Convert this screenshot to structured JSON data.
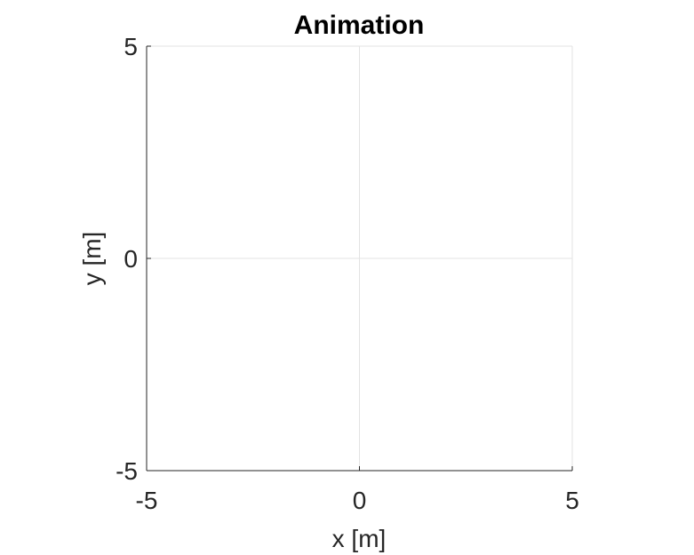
{
  "chart_data": {
    "type": "line",
    "title": "Animation",
    "xlabel": "x [m]",
    "ylabel": "y [m]",
    "xlim": [
      -5,
      5
    ],
    "ylim": [
      -5,
      5
    ],
    "xticks": [
      -5,
      0,
      5
    ],
    "yticks": [
      -5,
      0,
      5
    ],
    "xtick_labels": [
      "-5",
      "0",
      "5"
    ],
    "ytick_labels": [
      "-5",
      "0",
      "5"
    ],
    "grid": true,
    "series": []
  },
  "colors": {
    "background": "#ffffff",
    "axis": "#262626",
    "grid": "#e3e3e3",
    "title": "#000000"
  }
}
